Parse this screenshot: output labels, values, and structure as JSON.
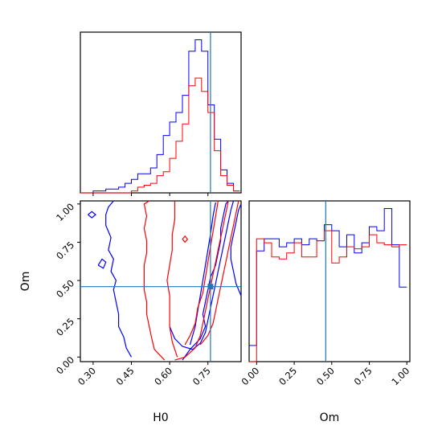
{
  "chart_data": {
    "type": "corner",
    "colors": {
      "series_a": "#0000ff",
      "series_b": "#ff0000",
      "truth": "#1f77b4"
    },
    "truth": {
      "H0": 0.76,
      "Om": 0.46
    },
    "axes": {
      "H0": {
        "label": "H0",
        "lim": [
          0.25,
          0.88
        ],
        "ticks": [
          0.3,
          0.45,
          0.6,
          0.75
        ],
        "tick_labels": [
          "0.30",
          "0.45",
          "0.60",
          "0.75"
        ]
      },
      "Om": {
        "label": "Om",
        "lim": [
          -0.03,
          1.02
        ],
        "ticks": [
          0.0,
          0.25,
          0.5,
          0.75,
          1.0
        ],
        "tick_labels": [
          "0.00",
          "0.25",
          "0.50",
          "0.75",
          "1.00"
        ]
      }
    },
    "hist_H0": {
      "edges": [
        0.25,
        0.275,
        0.3,
        0.325,
        0.35,
        0.375,
        0.4,
        0.425,
        0.45,
        0.475,
        0.5,
        0.525,
        0.55,
        0.575,
        0.6,
        0.625,
        0.65,
        0.675,
        0.7,
        0.725,
        0.75,
        0.775,
        0.8,
        0.825,
        0.85,
        0.875
      ],
      "series": [
        {
          "values": [
            0,
            0,
            1,
            1,
            2,
            2,
            3,
            5,
            7,
            10,
            10,
            13,
            20,
            30,
            37,
            42,
            51,
            74,
            80,
            74,
            46,
            28,
            12,
            5,
            1
          ]
        },
        {
          "values": [
            0,
            0,
            0,
            0,
            0,
            0,
            0,
            0,
            1,
            3,
            4,
            5,
            9,
            11,
            18,
            27,
            36,
            56,
            60,
            53,
            42,
            22,
            9,
            4,
            1
          ]
        }
      ]
    },
    "hist_Om": {
      "edges": [
        -0.05,
        0.0,
        0.05,
        0.1,
        0.15,
        0.2,
        0.25,
        0.3,
        0.35,
        0.4,
        0.45,
        0.5,
        0.55,
        0.6,
        0.65,
        0.7,
        0.75,
        0.8,
        0.85,
        0.9,
        0.95,
        1.0
      ],
      "series": [
        {
          "values": [
            8,
            55,
            61,
            61,
            57,
            59,
            61,
            58,
            61,
            60,
            68,
            65,
            57,
            63,
            54,
            59,
            67,
            65,
            76,
            58,
            37
          ]
        },
        {
          "values": [
            0,
            61,
            59,
            52,
            51,
            54,
            59,
            52,
            52,
            60,
            65,
            49,
            52,
            57,
            56,
            57,
            63,
            59,
            58,
            57,
            58
          ]
        }
      ]
    },
    "contours": [
      {
        "series": 0,
        "level": "outer",
        "points": [
          [
            0.45,
            0.0
          ],
          [
            0.43,
            0.06
          ],
          [
            0.42,
            0.13
          ],
          [
            0.4,
            0.2
          ],
          [
            0.4,
            0.28
          ],
          [
            0.39,
            0.36
          ],
          [
            0.38,
            0.44
          ],
          [
            0.39,
            0.5
          ],
          [
            0.37,
            0.56
          ],
          [
            0.38,
            0.64
          ],
          [
            0.36,
            0.7
          ],
          [
            0.37,
            0.78
          ],
          [
            0.35,
            0.86
          ],
          [
            0.35,
            0.93
          ],
          [
            0.36,
            0.98
          ],
          [
            0.38,
            1.02
          ]
        ]
      },
      {
        "series": 0,
        "level": "outer",
        "points": [
          [
            0.65,
            -0.02
          ],
          [
            0.68,
            0.05
          ],
          [
            0.72,
            0.12
          ],
          [
            0.74,
            0.2
          ],
          [
            0.73,
            0.28
          ],
          [
            0.74,
            0.36
          ],
          [
            0.75,
            0.44
          ],
          [
            0.76,
            0.52
          ],
          [
            0.78,
            0.6
          ],
          [
            0.79,
            0.68
          ],
          [
            0.8,
            0.76
          ],
          [
            0.8,
            0.84
          ],
          [
            0.81,
            0.92
          ],
          [
            0.82,
            1.0
          ],
          [
            0.83,
            1.02
          ]
        ]
      },
      {
        "series": 0,
        "level": "inner",
        "points": [
          [
            0.6,
            0.2
          ],
          [
            0.62,
            0.12
          ],
          [
            0.65,
            0.07
          ],
          [
            0.69,
            0.05
          ],
          [
            0.72,
            0.09
          ],
          [
            0.74,
            0.16
          ],
          [
            0.75,
            0.24
          ],
          [
            0.76,
            0.32
          ],
          [
            0.77,
            0.4
          ],
          [
            0.78,
            0.48
          ],
          [
            0.79,
            0.56
          ],
          [
            0.8,
            0.64
          ],
          [
            0.81,
            0.72
          ],
          [
            0.82,
            0.8
          ],
          [
            0.83,
            0.88
          ],
          [
            0.84,
            0.96
          ],
          [
            0.85,
            1.02
          ]
        ]
      },
      {
        "series": 0,
        "level": "inner",
        "points": [
          [
            0.88,
            0.4
          ],
          [
            0.86,
            0.48
          ],
          [
            0.85,
            0.56
          ],
          [
            0.84,
            0.64
          ],
          [
            0.84,
            0.72
          ],
          [
            0.85,
            0.8
          ],
          [
            0.86,
            0.88
          ],
          [
            0.87,
            0.96
          ],
          [
            0.88,
            1.0
          ]
        ]
      },
      {
        "series": 0,
        "level": "inner",
        "points": [
          [
            0.68,
            0.08
          ],
          [
            0.7,
            0.2
          ],
          [
            0.71,
            0.3
          ],
          [
            0.72,
            0.4
          ],
          [
            0.73,
            0.5
          ],
          [
            0.74,
            0.6
          ],
          [
            0.75,
            0.7
          ],
          [
            0.76,
            0.8
          ],
          [
            0.77,
            0.92
          ],
          [
            0.78,
            1.01
          ]
        ]
      },
      {
        "series": 0,
        "level": "island",
        "points": [
          [
            0.28,
            0.93
          ],
          [
            0.295,
            0.95
          ],
          [
            0.31,
            0.93
          ],
          [
            0.295,
            0.91
          ],
          [
            0.28,
            0.93
          ]
        ]
      },
      {
        "series": 0,
        "level": "island",
        "points": [
          [
            0.32,
            0.6
          ],
          [
            0.335,
            0.64
          ],
          [
            0.35,
            0.62
          ],
          [
            0.34,
            0.58
          ],
          [
            0.32,
            0.6
          ]
        ]
      },
      {
        "series": 1,
        "level": "outer",
        "points": [
          [
            0.58,
            -0.02
          ],
          [
            0.54,
            0.05
          ],
          [
            0.53,
            0.12
          ],
          [
            0.52,
            0.2
          ],
          [
            0.51,
            0.28
          ],
          [
            0.51,
            0.36
          ],
          [
            0.5,
            0.44
          ],
          [
            0.5,
            0.52
          ],
          [
            0.5,
            0.6
          ],
          [
            0.51,
            0.68
          ],
          [
            0.51,
            0.76
          ],
          [
            0.5,
            0.84
          ],
          [
            0.51,
            0.92
          ],
          [
            0.5,
            1.0
          ],
          [
            0.52,
            1.02
          ]
        ]
      },
      {
        "series": 1,
        "level": "outer",
        "points": [
          [
            0.83,
            1.02
          ],
          [
            0.82,
            0.94
          ],
          [
            0.81,
            0.86
          ],
          [
            0.8,
            0.78
          ],
          [
            0.79,
            0.7
          ],
          [
            0.78,
            0.62
          ],
          [
            0.77,
            0.54
          ],
          [
            0.76,
            0.46
          ],
          [
            0.75,
            0.38
          ],
          [
            0.74,
            0.3
          ],
          [
            0.73,
            0.22
          ],
          [
            0.72,
            0.14
          ],
          [
            0.7,
            0.06
          ],
          [
            0.66,
            0.0
          ],
          [
            0.62,
            -0.02
          ]
        ]
      },
      {
        "series": 1,
        "level": "inner",
        "points": [
          [
            0.63,
            0.0
          ],
          [
            0.61,
            0.1
          ],
          [
            0.6,
            0.2
          ],
          [
            0.6,
            0.3
          ],
          [
            0.6,
            0.4
          ],
          [
            0.59,
            0.5
          ],
          [
            0.6,
            0.6
          ],
          [
            0.61,
            0.7
          ],
          [
            0.61,
            0.8
          ],
          [
            0.62,
            0.9
          ],
          [
            0.62,
            1.02
          ]
        ]
      },
      {
        "series": 1,
        "level": "inner",
        "points": [
          [
            0.79,
            1.02
          ],
          [
            0.78,
            0.92
          ],
          [
            0.77,
            0.82
          ],
          [
            0.76,
            0.72
          ],
          [
            0.75,
            0.62
          ],
          [
            0.74,
            0.52
          ],
          [
            0.73,
            0.42
          ],
          [
            0.71,
            0.32
          ],
          [
            0.7,
            0.22
          ],
          [
            0.68,
            0.14
          ],
          [
            0.66,
            0.08
          ]
        ]
      },
      {
        "series": 1,
        "level": "inner",
        "points": [
          [
            0.87,
            1.02
          ],
          [
            0.86,
            0.94
          ],
          [
            0.85,
            0.86
          ],
          [
            0.84,
            0.78
          ],
          [
            0.83,
            0.7
          ],
          [
            0.82,
            0.62
          ],
          [
            0.81,
            0.54
          ],
          [
            0.8,
            0.46
          ],
          [
            0.79,
            0.38
          ],
          [
            0.78,
            0.3
          ],
          [
            0.77,
            0.22
          ],
          [
            0.75,
            0.14
          ],
          [
            0.72,
            0.08
          ]
        ]
      },
      {
        "series": 1,
        "level": "island",
        "points": [
          [
            0.65,
            0.77
          ],
          [
            0.66,
            0.79
          ],
          [
            0.67,
            0.77
          ],
          [
            0.66,
            0.75
          ],
          [
            0.65,
            0.77
          ]
        ]
      }
    ]
  }
}
